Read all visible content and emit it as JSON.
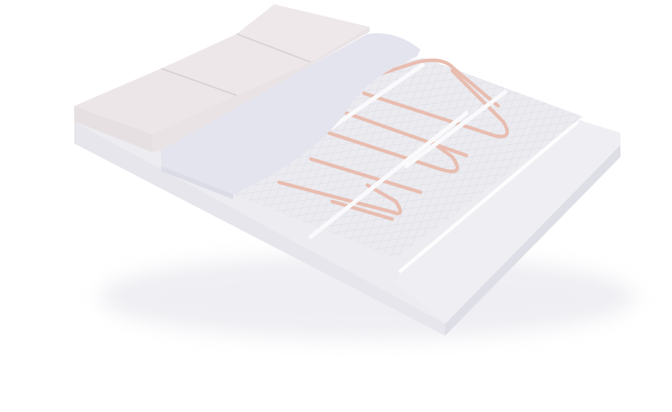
{
  "diagram": {
    "title": "",
    "labels": [],
    "layers": [
      {
        "name": "tile",
        "color": "#ede6e8"
      },
      {
        "name": "adhesive",
        "color": "#e4e4ee"
      },
      {
        "name": "heating-mat-mesh",
        "color": "#ebebf0"
      },
      {
        "name": "heating-cable",
        "color": "#e8bdb0"
      },
      {
        "name": "insulation-board",
        "color": "#ececf1"
      }
    ],
    "cable_loops": 3,
    "tile_count": 3
  }
}
